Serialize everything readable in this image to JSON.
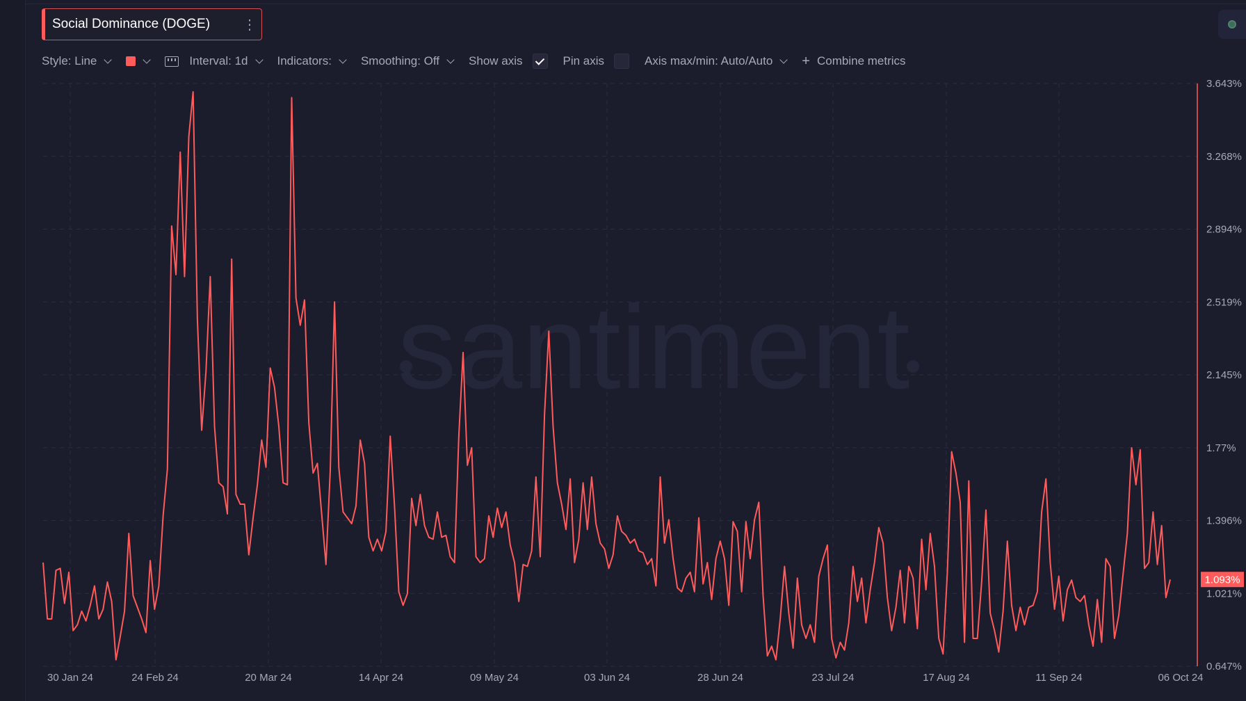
{
  "title": "Social Dominance (DOGE)",
  "title_menu_icon": "more-vertical-icon",
  "toolbar": {
    "style_label": "Style: Line",
    "line_color": "#ff5b5b",
    "interval_label": "Interval: 1d",
    "indicators_label": "Indicators:",
    "smoothing_label": "Smoothing: Off",
    "show_axis_label": "Show axis",
    "show_axis_checked": true,
    "pin_axis_label": "Pin axis",
    "pin_axis_checked": false,
    "axis_maxmin_label": "Axis max/min: Auto/Auto",
    "combine_label": "Combine metrics"
  },
  "watermark": "santiment",
  "chart_data": {
    "type": "line",
    "title": "Social Dominance (DOGE)",
    "xlabel": "",
    "ylabel": "",
    "x_start": "2024-01-29",
    "x_end": "2024-10-05",
    "x_ticks": [
      "30 Jan 24",
      "24 Feb 24",
      "20 Mar 24",
      "14 Apr 24",
      "09 May 24",
      "03 Jun 24",
      "28 Jun 24",
      "23 Jul 24",
      "17 Aug 24",
      "11 Sep 24",
      "06 Oct 24"
    ],
    "y_ticks": [
      "3.643%",
      "3.268%",
      "2.894%",
      "2.519%",
      "2.145%",
      "1.77%",
      "1.396%",
      "1.021%",
      "0.647%"
    ],
    "ylim": [
      0.647,
      3.643
    ],
    "y_unit": "%",
    "grid": true,
    "last_value_label": "1.093%",
    "series": [
      {
        "color": "#ff5b5b",
        "values": [
          1.18,
          0.89,
          0.89,
          1.14,
          1.15,
          0.97,
          1.13,
          0.83,
          0.86,
          0.93,
          0.88,
          0.96,
          1.06,
          0.89,
          0.94,
          1.08,
          0.98,
          0.68,
          0.8,
          0.93,
          1.33,
          1.01,
          0.95,
          0.89,
          0.82,
          1.19,
          0.94,
          1.06,
          1.42,
          1.66,
          2.91,
          2.66,
          3.29,
          2.65,
          3.37,
          3.6,
          2.43,
          1.86,
          2.16,
          2.65,
          1.88,
          1.59,
          1.57,
          1.43,
          2.74,
          1.53,
          1.48,
          1.48,
          1.22,
          1.41,
          1.58,
          1.81,
          1.67,
          2.18,
          2.08,
          1.88,
          1.59,
          1.58,
          3.57,
          2.54,
          2.4,
          2.53,
          1.9,
          1.64,
          1.69,
          1.43,
          1.17,
          1.65,
          2.52,
          1.67,
          1.44,
          1.41,
          1.38,
          1.47,
          1.81,
          1.69,
          1.31,
          1.24,
          1.3,
          1.24,
          1.34,
          1.83,
          1.47,
          1.03,
          0.96,
          1.02,
          1.51,
          1.37,
          1.53,
          1.37,
          1.31,
          1.3,
          1.44,
          1.31,
          1.32,
          1.21,
          1.18,
          1.83,
          2.26,
          1.68,
          1.77,
          1.21,
          1.18,
          1.2,
          1.42,
          1.31,
          1.46,
          1.36,
          1.44,
          1.27,
          1.18,
          0.98,
          1.17,
          1.16,
          1.24,
          1.62,
          1.21,
          1.94,
          2.37,
          1.88,
          1.59,
          1.48,
          1.35,
          1.61,
          1.18,
          1.3,
          1.59,
          1.35,
          1.62,
          1.38,
          1.28,
          1.25,
          1.15,
          1.22,
          1.42,
          1.34,
          1.32,
          1.28,
          1.3,
          1.24,
          1.23,
          1.17,
          1.2,
          1.06,
          1.62,
          1.28,
          1.4,
          1.2,
          1.05,
          1.03,
          1.1,
          1.13,
          1.03,
          1.41,
          1.07,
          1.18,
          0.99,
          1.2,
          1.29,
          1.2,
          0.96,
          1.39,
          1.34,
          1.03,
          1.39,
          1.2,
          1.4,
          1.49,
          1.01,
          0.7,
          0.75,
          0.68,
          0.89,
          1.16,
          0.92,
          0.74,
          1.1,
          0.86,
          0.79,
          0.86,
          0.77,
          1.11,
          1.2,
          1.27,
          0.79,
          0.69,
          0.77,
          0.73,
          0.87,
          1.16,
          0.98,
          1.1,
          0.87,
          1.04,
          1.18,
          1.36,
          1.28,
          1.0,
          0.83,
          0.95,
          1.14,
          0.87,
          1.16,
          1.1,
          0.84,
          1.3,
          1.04,
          1.33,
          1.16,
          0.79,
          0.71,
          1.13,
          1.75,
          1.64,
          1.49,
          0.77,
          1.6,
          0.79,
          0.79,
          1.08,
          1.45,
          0.92,
          0.83,
          0.72,
          0.93,
          1.29,
          0.96,
          0.83,
          0.95,
          0.86,
          0.95,
          0.96,
          1.03,
          1.44,
          1.61,
          1.18,
          0.94,
          1.11,
          0.88,
          1.04,
          1.09,
          1.0,
          0.98,
          1.01,
          0.86,
          0.75,
          0.99,
          0.77,
          1.2,
          1.16,
          0.79,
          0.91,
          1.12,
          1.33,
          1.77,
          1.58,
          1.76,
          1.15,
          1.18,
          1.44,
          1.17,
          1.37,
          1.0,
          1.093
        ]
      }
    ]
  }
}
